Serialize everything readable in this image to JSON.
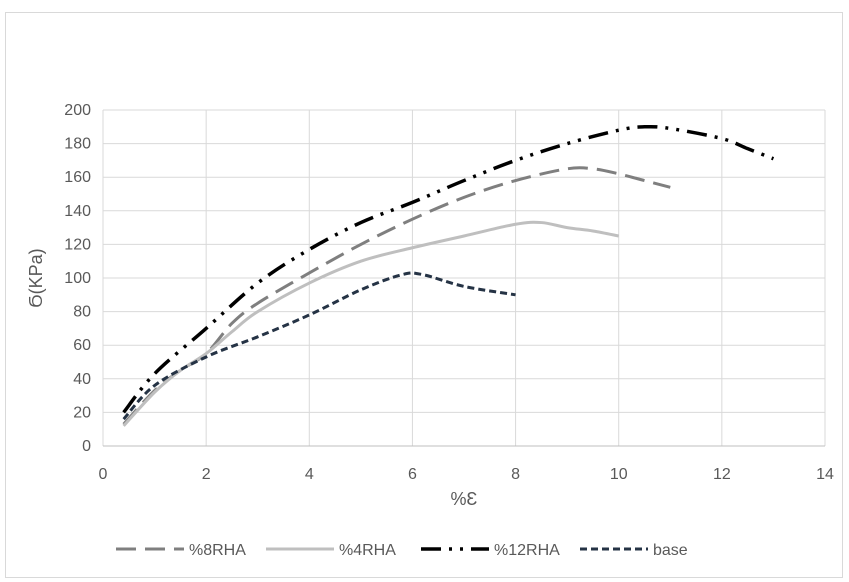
{
  "chart_data": {
    "type": "line",
    "title": "",
    "xlabel": "%Ɛ",
    "ylabel": "Ϭ(KPa)",
    "xlim": [
      0,
      14
    ],
    "ylim": [
      0,
      200
    ],
    "x_ticks": [
      "0",
      "2",
      "4",
      "6",
      "8",
      "10",
      "12",
      "14"
    ],
    "y_ticks": [
      "0",
      "20",
      "40",
      "60",
      "80",
      "100",
      "120",
      "140",
      "160",
      "180",
      "200"
    ],
    "grid": true,
    "legend_position": "bottom",
    "series": [
      {
        "name": "%8RHA",
        "color": "#7f7f7f",
        "dash": "long-dash",
        "x": [
          0.4,
          1.0,
          1.5,
          2.0,
          2.5,
          3.0,
          4.0,
          5.0,
          6.0,
          7.0,
          8.0,
          9.0,
          9.5,
          10.0,
          10.5,
          11.0
        ],
        "y": [
          13,
          33,
          45,
          55,
          73,
          85,
          103,
          120,
          135,
          148,
          158,
          165,
          165,
          162,
          158,
          154
        ]
      },
      {
        "name": "%4RHA",
        "color": "#bfbfbf",
        "dash": "solid",
        "x": [
          0.4,
          1.0,
          1.5,
          2.0,
          2.5,
          3.0,
          4.0,
          5.0,
          6.0,
          7.0,
          8.0,
          8.5,
          9.0,
          9.5,
          10.0
        ],
        "y": [
          12,
          32,
          45,
          55,
          68,
          80,
          97,
          110,
          118,
          125,
          132,
          133,
          130,
          128,
          125
        ]
      },
      {
        "name": "%12RHA",
        "color": "#000000",
        "dash": "dash-dot-dot",
        "x": [
          0.4,
          1.0,
          2.0,
          3.0,
          4.0,
          5.0,
          6.0,
          7.0,
          8.0,
          9.0,
          10.0,
          10.5,
          11.0,
          12.0,
          12.5,
          13.0
        ],
        "y": [
          20,
          43,
          70,
          97,
          117,
          133,
          145,
          158,
          170,
          180,
          188,
          190,
          189,
          183,
          177,
          171
        ]
      },
      {
        "name": "base",
        "color": "#253345",
        "dash": "short-dash",
        "x": [
          0.4,
          1.0,
          2.0,
          3.0,
          4.0,
          5.0,
          5.8,
          6.2,
          7.0,
          8.0
        ],
        "y": [
          16,
          36,
          53,
          65,
          78,
          93,
          102,
          102,
          95,
          90
        ]
      }
    ]
  }
}
